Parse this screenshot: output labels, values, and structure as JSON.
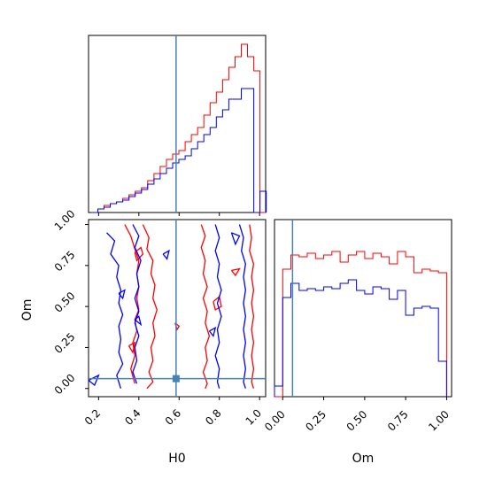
{
  "chart_data": {
    "type": "corner",
    "parameters": [
      "H0",
      "Om"
    ],
    "truth": {
      "H0": 0.585,
      "Om": 0.06
    },
    "series_colors": {
      "red": "#ff0000",
      "blue": "#0000ff",
      "truth": "#4682b4"
    },
    "hist_h0": {
      "x_range": [
        0.15,
        1.03
      ],
      "bin_edges": [
        0.165,
        0.196,
        0.227,
        0.258,
        0.289,
        0.32,
        0.351,
        0.382,
        0.413,
        0.444,
        0.475,
        0.506,
        0.537,
        0.568,
        0.599,
        0.63,
        0.661,
        0.692,
        0.723,
        0.754,
        0.785,
        0.816,
        0.847,
        0.878,
        0.909,
        0.94,
        0.971,
        1.002,
        1.033
      ],
      "series": [
        {
          "color": "red",
          "values": [
            0,
            2,
            4,
            5,
            6,
            8,
            10,
            12,
            14,
            18,
            22,
            26,
            30,
            33,
            35,
            40,
            44,
            48,
            55,
            62,
            68,
            75,
            82,
            88,
            95,
            88,
            80,
            0
          ]
        },
        {
          "color": "blue",
          "values": [
            0,
            2,
            3,
            5,
            6,
            7,
            9,
            11,
            13,
            16,
            19,
            22,
            25,
            28,
            30,
            32,
            36,
            40,
            44,
            48,
            54,
            58,
            64,
            64,
            70,
            70,
            0,
            12
          ]
        }
      ]
    },
    "hist_om": {
      "x_range": [
        -0.05,
        1.03
      ],
      "xticks": [
        "0.00",
        "0.25",
        "0.50",
        "0.75",
        "1.00"
      ],
      "bin_edges": [
        -0.05,
        0.0,
        0.05,
        0.1,
        0.15,
        0.2,
        0.25,
        0.3,
        0.35,
        0.4,
        0.45,
        0.5,
        0.55,
        0.6,
        0.65,
        0.7,
        0.75,
        0.8,
        0.85,
        0.9,
        0.95,
        1.0
      ],
      "series": [
        {
          "color": "red",
          "values": [
            0,
            0.72,
            0.8,
            0.79,
            0.81,
            0.78,
            0.8,
            0.82,
            0.76,
            0.8,
            0.82,
            0.78,
            0.81,
            0.79,
            0.75,
            0.82,
            0.79,
            0.7,
            0.72,
            0.71,
            0.7
          ]
        },
        {
          "color": "blue",
          "values": [
            0.06,
            0.56,
            0.64,
            0.6,
            0.61,
            0.6,
            0.62,
            0.61,
            0.64,
            0.66,
            0.6,
            0.58,
            0.62,
            0.61,
            0.55,
            0.6,
            0.46,
            0.5,
            0.51,
            0.5,
            0.2
          ]
        }
      ]
    },
    "contour": {
      "x_range": [
        0.15,
        1.03
      ],
      "y_range": [
        -0.05,
        1.03
      ],
      "xticks": [
        "0.2",
        "0.4",
        "0.6",
        "0.8",
        "1.0"
      ],
      "yticks": [
        "0.00",
        "0.25",
        "0.50",
        "0.75",
        "1.00"
      ],
      "red_paths": [
        [
          [
            0.33,
            1.0
          ],
          [
            0.36,
            0.93
          ],
          [
            0.38,
            0.85
          ],
          [
            0.4,
            0.78
          ],
          [
            0.39,
            0.7
          ],
          [
            0.4,
            0.62
          ],
          [
            0.39,
            0.55
          ],
          [
            0.4,
            0.48
          ],
          [
            0.38,
            0.42
          ],
          [
            0.39,
            0.35
          ],
          [
            0.37,
            0.28
          ],
          [
            0.38,
            0.2
          ],
          [
            0.36,
            0.12
          ],
          [
            0.38,
            0.03
          ]
        ],
        [
          [
            0.42,
            1.0
          ],
          [
            0.45,
            0.92
          ],
          [
            0.44,
            0.85
          ],
          [
            0.47,
            0.78
          ],
          [
            0.46,
            0.7
          ],
          [
            0.48,
            0.63
          ],
          [
            0.47,
            0.55
          ],
          [
            0.49,
            0.48
          ],
          [
            0.47,
            0.4
          ],
          [
            0.48,
            0.32
          ],
          [
            0.46,
            0.25
          ],
          [
            0.47,
            0.17
          ],
          [
            0.45,
            0.1
          ],
          [
            0.47,
            0.04
          ],
          [
            0.44,
            0.0
          ]
        ],
        [
          [
            0.71,
            1.0
          ],
          [
            0.73,
            0.93
          ],
          [
            0.71,
            0.86
          ],
          [
            0.73,
            0.78
          ],
          [
            0.72,
            0.7
          ],
          [
            0.74,
            0.62
          ],
          [
            0.72,
            0.55
          ],
          [
            0.74,
            0.47
          ],
          [
            0.73,
            0.4
          ],
          [
            0.75,
            0.32
          ],
          [
            0.73,
            0.25
          ],
          [
            0.74,
            0.17
          ],
          [
            0.72,
            0.1
          ],
          [
            0.74,
            0.03
          ],
          [
            0.73,
            0.0
          ]
        ],
        [
          [
            0.95,
            1.0
          ],
          [
            0.96,
            0.92
          ],
          [
            0.95,
            0.84
          ],
          [
            0.97,
            0.76
          ],
          [
            0.96,
            0.68
          ],
          [
            0.97,
            0.6
          ],
          [
            0.96,
            0.52
          ],
          [
            0.97,
            0.44
          ],
          [
            0.96,
            0.36
          ],
          [
            0.97,
            0.28
          ],
          [
            0.96,
            0.2
          ],
          [
            0.97,
            0.12
          ],
          [
            0.96,
            0.04
          ],
          [
            0.97,
            0.0
          ]
        ],
        [
          [
            0.38,
            0.83
          ],
          [
            0.41,
            0.86
          ],
          [
            0.42,
            0.82
          ],
          [
            0.39,
            0.78
          ],
          [
            0.38,
            0.83
          ]
        ],
        [
          [
            0.58,
            0.4
          ],
          [
            0.6,
            0.38
          ],
          [
            0.59,
            0.36
          ],
          [
            0.58,
            0.4
          ]
        ],
        [
          [
            0.86,
            0.72
          ],
          [
            0.9,
            0.73
          ],
          [
            0.88,
            0.69
          ],
          [
            0.86,
            0.72
          ]
        ],
        [
          [
            0.77,
            0.53
          ],
          [
            0.8,
            0.56
          ],
          [
            0.81,
            0.5
          ],
          [
            0.78,
            0.48
          ],
          [
            0.77,
            0.53
          ]
        ],
        [
          [
            0.35,
            0.26
          ],
          [
            0.38,
            0.28
          ],
          [
            0.37,
            0.22
          ],
          [
            0.35,
            0.26
          ]
        ]
      ],
      "blue_paths": [
        [
          [
            0.24,
            0.95
          ],
          [
            0.28,
            0.9
          ],
          [
            0.26,
            0.82
          ],
          [
            0.3,
            0.75
          ],
          [
            0.29,
            0.68
          ],
          [
            0.31,
            0.6
          ],
          [
            0.3,
            0.52
          ],
          [
            0.32,
            0.45
          ],
          [
            0.3,
            0.38
          ],
          [
            0.31,
            0.3
          ],
          [
            0.3,
            0.22
          ],
          [
            0.32,
            0.15
          ],
          [
            0.29,
            0.08
          ],
          [
            0.31,
            0.0
          ]
        ],
        [
          [
            0.37,
            1.0
          ],
          [
            0.4,
            0.93
          ],
          [
            0.38,
            0.86
          ],
          [
            0.41,
            0.78
          ],
          [
            0.39,
            0.7
          ],
          [
            0.4,
            0.62
          ],
          [
            0.38,
            0.55
          ],
          [
            0.4,
            0.47
          ],
          [
            0.38,
            0.4
          ],
          [
            0.4,
            0.32
          ],
          [
            0.38,
            0.25
          ],
          [
            0.39,
            0.17
          ],
          [
            0.37,
            0.1
          ],
          [
            0.39,
            0.03
          ]
        ],
        [
          [
            0.78,
            1.0
          ],
          [
            0.8,
            0.92
          ],
          [
            0.78,
            0.84
          ],
          [
            0.8,
            0.76
          ],
          [
            0.79,
            0.68
          ],
          [
            0.81,
            0.6
          ],
          [
            0.79,
            0.52
          ],
          [
            0.81,
            0.44
          ],
          [
            0.79,
            0.36
          ],
          [
            0.8,
            0.28
          ],
          [
            0.78,
            0.2
          ],
          [
            0.8,
            0.12
          ],
          [
            0.79,
            0.04
          ],
          [
            0.8,
            0.0
          ]
        ],
        [
          [
            0.9,
            1.0
          ],
          [
            0.92,
            0.92
          ],
          [
            0.91,
            0.84
          ],
          [
            0.93,
            0.76
          ],
          [
            0.92,
            0.68
          ],
          [
            0.93,
            0.6
          ],
          [
            0.92,
            0.52
          ],
          [
            0.93,
            0.44
          ],
          [
            0.92,
            0.36
          ],
          [
            0.93,
            0.28
          ],
          [
            0.92,
            0.2
          ],
          [
            0.93,
            0.12
          ],
          [
            0.92,
            0.04
          ],
          [
            0.93,
            0.0
          ]
        ],
        [
          [
            0.15,
            0.05
          ],
          [
            0.2,
            0.08
          ],
          [
            0.18,
            0.02
          ],
          [
            0.15,
            0.05
          ]
        ],
        [
          [
            0.38,
            0.42
          ],
          [
            0.4,
            0.44
          ],
          [
            0.41,
            0.39
          ],
          [
            0.38,
            0.42
          ]
        ],
        [
          [
            0.86,
            0.95
          ],
          [
            0.9,
            0.93
          ],
          [
            0.88,
            0.88
          ],
          [
            0.86,
            0.95
          ]
        ],
        [
          [
            0.52,
            0.82
          ],
          [
            0.55,
            0.84
          ],
          [
            0.54,
            0.79
          ],
          [
            0.52,
            0.82
          ]
        ],
        [
          [
            0.75,
            0.35
          ],
          [
            0.78,
            0.37
          ],
          [
            0.77,
            0.32
          ],
          [
            0.75,
            0.35
          ]
        ],
        [
          [
            0.3,
            0.58
          ],
          [
            0.33,
            0.6
          ],
          [
            0.32,
            0.55
          ],
          [
            0.3,
            0.58
          ]
        ]
      ]
    }
  },
  "labels": {
    "xlabel_h0": "H0",
    "xlabel_om": "Om",
    "ylabel_om": "Om"
  }
}
